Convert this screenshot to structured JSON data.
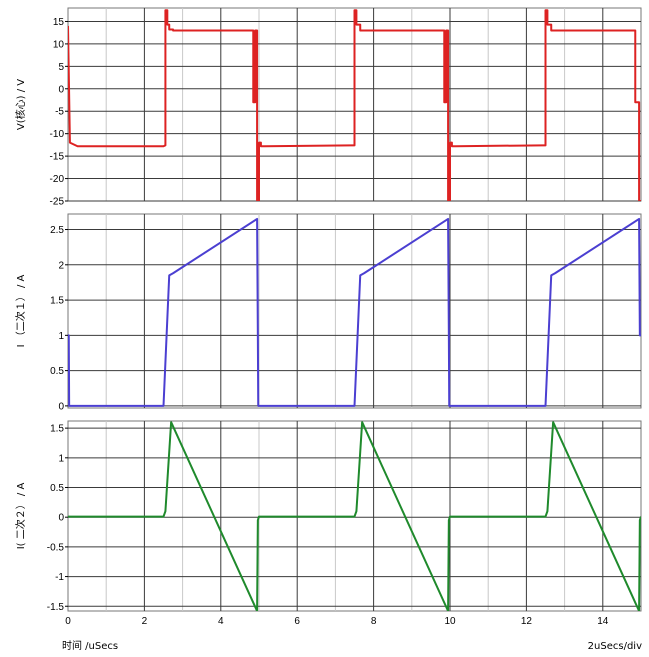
{
  "chart_data": [
    {
      "type": "line",
      "ylabel": "V(核心) / V",
      "ylim": [
        -25,
        18
      ],
      "yticks": [
        15,
        10,
        5,
        0,
        -5,
        -10,
        -15,
        -20,
        -25
      ],
      "xlim": [
        0,
        15
      ],
      "grid": true,
      "color": "#dd2222",
      "series": [
        {
          "x": [
            0,
            0.05,
            0.25,
            2.5,
            2.55,
            2.55,
            2.6,
            2.6,
            2.65,
            2.65,
            2.75,
            2.75,
            4.85,
            4.85,
            4.9,
            4.9,
            4.95,
            4.95,
            5.0,
            5.0,
            5.05,
            5.05,
            5.15,
            5.15,
            7.4,
            7.5,
            7.5,
            7.55,
            7.55,
            7.65,
            7.65,
            9.85,
            9.85,
            9.9,
            9.9,
            9.95,
            9.95,
            10.0,
            10.0,
            10.05,
            10.05,
            10.15,
            10.15,
            12.4,
            12.5,
            12.5,
            12.55,
            12.55,
            12.65,
            12.65,
            14.85,
            14.85,
            14.95,
            14.95,
            15.0
          ],
          "y": [
            14,
            -12,
            -12.8,
            -12.8,
            -12.6,
            17.5,
            17.5,
            14.3,
            14.3,
            13.2,
            13.2,
            13.0,
            13.0,
            -3,
            -3,
            13,
            13,
            -25,
            -25,
            -12,
            -12,
            -12.8,
            -12.8,
            -12.8,
            -12.6,
            -12.6,
            17.5,
            17.5,
            14.3,
            14.3,
            13.0,
            13.0,
            -3,
            -3,
            13,
            13,
            -25,
            -25,
            -12,
            -12,
            -12.8,
            -12.8,
            -12.8,
            -12.6,
            -12.6,
            17.5,
            17.5,
            14.3,
            14.3,
            13.0,
            13.0,
            -3,
            -3,
            -25,
            -25
          ]
        }
      ]
    },
    {
      "type": "line",
      "ylabel": "I （二次１） / A",
      "ylim": [
        -0.03,
        2.72
      ],
      "yticks": [
        2.5,
        2,
        1.5,
        1,
        0.5,
        0
      ],
      "xlim": [
        0,
        15
      ],
      "grid": true,
      "color": "#4b3fd1",
      "series": [
        {
          "x": [
            0,
            0.02,
            0.03,
            2.5,
            2.65,
            2.75,
            4.95,
            4.97,
            4.98,
            7.5,
            7.65,
            7.75,
            9.95,
            9.97,
            9.98,
            12.5,
            12.65,
            12.75,
            14.95,
            14.97,
            15.0
          ],
          "y": [
            1.0,
            1.0,
            0,
            0,
            1.85,
            1.88,
            2.65,
            1.0,
            0,
            0,
            1.85,
            1.88,
            2.65,
            1.0,
            0,
            0,
            1.85,
            1.88,
            2.65,
            1.0,
            1.0
          ]
        }
      ]
    },
    {
      "type": "line",
      "ylabel": "I( 二次２） / A",
      "ylim": [
        -1.58,
        1.62
      ],
      "yticks": [
        1.5,
        1,
        0.5,
        0,
        -0.5,
        -1,
        -1.5
      ],
      "xlim": [
        0,
        15
      ],
      "xticks": [
        0,
        2,
        4,
        6,
        8,
        10,
        12,
        14
      ],
      "grid": true,
      "color": "#1f8a2c",
      "series": [
        {
          "x": [
            0,
            2.5,
            2.55,
            2.7,
            4.95,
            4.97,
            5.0,
            7.5,
            7.55,
            7.7,
            9.95,
            9.97,
            10.0,
            12.5,
            12.55,
            12.7,
            14.95,
            14.97,
            15.0
          ],
          "y": [
            0.01,
            0.01,
            0.1,
            1.6,
            -1.58,
            -0.05,
            0.01,
            0.01,
            0.1,
            1.6,
            -1.58,
            -0.05,
            0.01,
            0.01,
            0.1,
            1.6,
            -1.58,
            -0.05,
            0.01
          ]
        }
      ]
    }
  ],
  "footer": {
    "x_axis_label": "时间 /uSecs",
    "scale_label": "2uSecs/div"
  }
}
